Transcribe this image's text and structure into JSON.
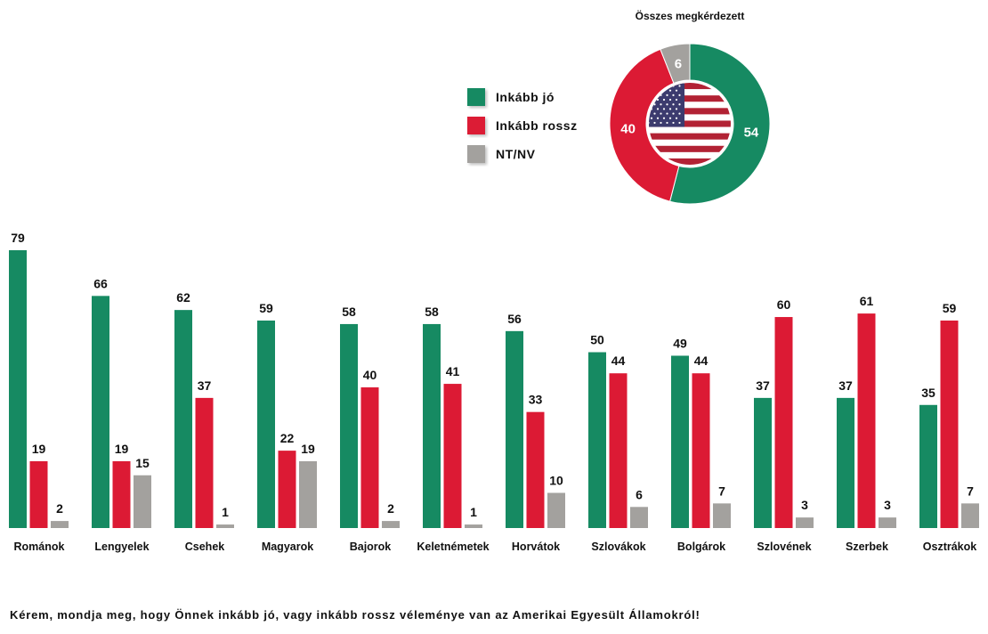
{
  "chart_data": [
    {
      "type": "bar",
      "title": "",
      "xlabel": "",
      "ylabel": "",
      "ylim": [
        0,
        85
      ],
      "categories": [
        "Románok",
        "Lengyelek",
        "Csehek",
        "Magyarok",
        "Bajorok",
        "Keletnémetek",
        "Horvátok",
        "Szlovákok",
        "Bolgárok",
        "Szlovének",
        "Szerbek",
        "Osztrákok"
      ],
      "series": [
        {
          "name": "Inkább jó",
          "color": "#168a62",
          "values": [
            79,
            66,
            62,
            59,
            58,
            58,
            56,
            50,
            49,
            37,
            37,
            35
          ]
        },
        {
          "name": "Inkább rossz",
          "color": "#dc1a34",
          "values": [
            19,
            19,
            37,
            22,
            40,
            41,
            33,
            44,
            44,
            60,
            61,
            59
          ]
        },
        {
          "name": "NT/NV",
          "color": "#a3a19e",
          "values": [
            2,
            15,
            1,
            19,
            2,
            1,
            10,
            6,
            7,
            3,
            3,
            7
          ]
        }
      ],
      "legend": "top-center"
    },
    {
      "type": "pie",
      "title": "Összes megkérdezett",
      "center_image": "us-flag",
      "slices": [
        {
          "name": "Inkább jó",
          "value": 54,
          "color": "#168a62"
        },
        {
          "name": "Inkább rossz",
          "value": 40,
          "color": "#dc1a34"
        },
        {
          "name": "NT/NV",
          "value": 6,
          "color": "#a3a19e"
        }
      ]
    }
  ],
  "legend": {
    "items": [
      {
        "label": "Inkább jó",
        "color": "#168a62"
      },
      {
        "label": "Inkább rossz",
        "color": "#dc1a34"
      },
      {
        "label": "NT/NV",
        "color": "#a3a19e"
      }
    ]
  },
  "question": "Kérem, mondja meg, hogy Önnek inkább jó, vagy inkább rossz véleménye van az Amerikai Egyesült Államokról!"
}
